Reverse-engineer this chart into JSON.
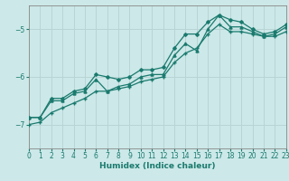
{
  "title": "",
  "xlabel": "Humidex (Indice chaleur)",
  "background_color": "#cce8e8",
  "grid_color": "#b8d4d4",
  "line_color": "#1a7a6e",
  "xlim": [
    0,
    23
  ],
  "ylim": [
    -7.5,
    -4.5
  ],
  "yticks": [
    -7,
    -6,
    -5
  ],
  "xticks": [
    0,
    1,
    2,
    3,
    4,
    5,
    6,
    7,
    8,
    9,
    10,
    11,
    12,
    13,
    14,
    15,
    16,
    17,
    18,
    19,
    20,
    21,
    22,
    23
  ],
  "line1_x": [
    0,
    1,
    2,
    3,
    4,
    5,
    6,
    7,
    8,
    9,
    10,
    11,
    12,
    13,
    14,
    15,
    16,
    17,
    18,
    19,
    20,
    21,
    22,
    23
  ],
  "line1_y": [
    -6.85,
    -6.85,
    -6.5,
    -6.5,
    -6.35,
    -6.3,
    -6.05,
    -6.3,
    -6.2,
    -6.15,
    -6.0,
    -5.95,
    -5.95,
    -5.55,
    -5.3,
    -5.45,
    -5.0,
    -4.7,
    -4.95,
    -4.95,
    -5.05,
    -5.15,
    -5.1,
    -4.95
  ],
  "line2_x": [
    0,
    1,
    2,
    3,
    4,
    5,
    6,
    7,
    8,
    9,
    10,
    11,
    12,
    13,
    14,
    15,
    16,
    17,
    18,
    19,
    20,
    21,
    22,
    23
  ],
  "line2_y": [
    -6.85,
    -6.85,
    -6.45,
    -6.45,
    -6.3,
    -6.25,
    -5.95,
    -6.0,
    -6.05,
    -6.0,
    -5.85,
    -5.85,
    -5.8,
    -5.4,
    -5.1,
    -5.1,
    -4.85,
    -4.7,
    -4.8,
    -4.85,
    -5.0,
    -5.1,
    -5.05,
    -4.9
  ],
  "line3_x": [
    0,
    1,
    2,
    3,
    4,
    5,
    6,
    7,
    8,
    9,
    10,
    11,
    12,
    13,
    14,
    15,
    16,
    17,
    18,
    19,
    20,
    21,
    22,
    23
  ],
  "line3_y": [
    -7.0,
    -6.95,
    -6.75,
    -6.65,
    -6.55,
    -6.45,
    -6.3,
    -6.3,
    -6.25,
    -6.2,
    -6.1,
    -6.05,
    -6.0,
    -5.7,
    -5.5,
    -5.4,
    -5.1,
    -4.9,
    -5.05,
    -5.05,
    -5.1,
    -5.15,
    -5.15,
    -5.05
  ]
}
